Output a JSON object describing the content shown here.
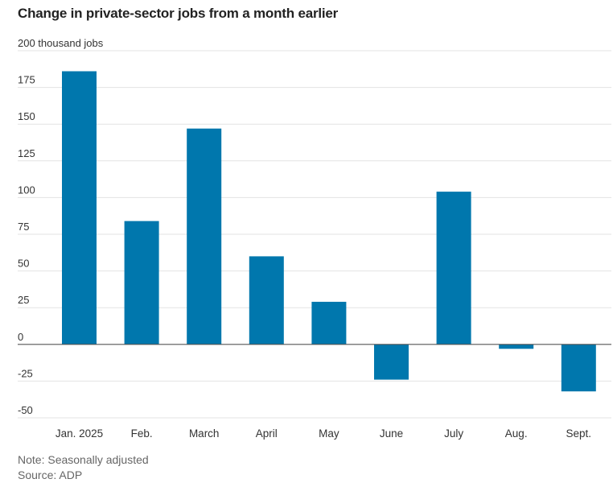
{
  "title": "Change in private-sector jobs from a month earlier",
  "note": "Note: Seasonally adjusted",
  "source": "Source: ADP",
  "colors": {
    "bar": "#0077ad",
    "grid": "#e3e3e3",
    "baseline": "#555555",
    "text": "#333333",
    "muted": "#666666"
  },
  "chart_data": {
    "type": "bar",
    "title": "Change in private-sector jobs from a month earlier",
    "ylabel": "",
    "xlabel": "",
    "categories": [
      "Jan. 2025",
      "Feb.",
      "March",
      "April",
      "May",
      "June",
      "July",
      "Aug.",
      "Sept."
    ],
    "values": [
      186,
      84,
      147,
      60,
      29,
      -24,
      104,
      -3,
      -32
    ],
    "ylim": [
      -50,
      200
    ],
    "yticks": [
      {
        "value": 200,
        "label": "200 thousand jobs"
      },
      {
        "value": 175,
        "label": "175"
      },
      {
        "value": 150,
        "label": "150"
      },
      {
        "value": 125,
        "label": "125"
      },
      {
        "value": 100,
        "label": "100"
      },
      {
        "value": 75,
        "label": "75"
      },
      {
        "value": 50,
        "label": "50"
      },
      {
        "value": 25,
        "label": "25"
      },
      {
        "value": 0,
        "label": "0"
      },
      {
        "value": -25,
        "label": "-25"
      },
      {
        "value": -50,
        "label": "-50"
      }
    ],
    "grid": true,
    "legend": "none"
  }
}
